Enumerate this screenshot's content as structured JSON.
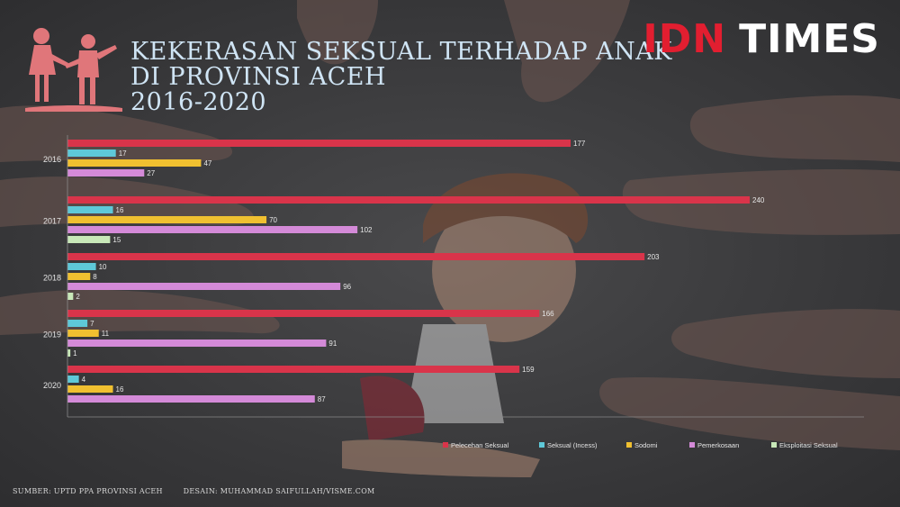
{
  "brand": {
    "logo_part1": "IDN",
    "logo_part2": "TIMES",
    "accent": "#e21e30"
  },
  "title_lines": [
    "KEKERASAN SEKSUAL TERHADAP ANAK",
    "DI PROVINSI ACEH",
    "2016-2020"
  ],
  "footer": {
    "source": "SUMBER: UPTD PPA PROVINSI ACEH",
    "design": "DESAIN: MUHAMMAD SAIFULLAH/VISME.COM"
  },
  "chart_data": {
    "type": "bar",
    "orientation": "horizontal",
    "title": "KEKERASAN SEKSUAL TERHADAP ANAK DI PROVINSI ACEH 2016-2020",
    "categories": [
      "2016",
      "2017",
      "2018",
      "2019",
      "2020"
    ],
    "series": [
      {
        "name": "Pelecehan Seksual",
        "color": "#d9344a",
        "values": [
          177,
          240,
          203,
          166,
          159
        ]
      },
      {
        "name": "Seksual (Incess)",
        "color": "#5ec8d8",
        "values": [
          17,
          16,
          10,
          7,
          4
        ]
      },
      {
        "name": "Sodomi",
        "color": "#f0c030",
        "values": [
          47,
          70,
          8,
          11,
          16
        ]
      },
      {
        "name": "Pemerkosaan",
        "color": "#d48ad8",
        "values": [
          27,
          102,
          96,
          91,
          87
        ]
      },
      {
        "name": "Eksploitasi Seksual",
        "color": "#c8e8b8",
        "values": [
          null,
          15,
          2,
          1,
          null
        ]
      }
    ],
    "xlim": [
      0,
      240
    ],
    "grid": false,
    "legend_position": "bottom-right"
  }
}
